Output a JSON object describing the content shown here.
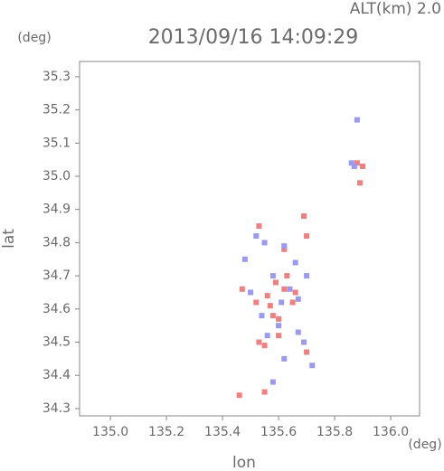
{
  "chart_data": {
    "type": "scatter",
    "title": "2013/09/16 14:09:29",
    "subtitle": "ALT(km) 2.0",
    "x_label": "lon",
    "y_label": "lat",
    "x_unit": "(deg)",
    "y_unit": "(deg)",
    "xlim": [
      134.89,
      136.103
    ],
    "ylim": [
      34.278,
      35.346
    ],
    "xticks": [
      {
        "value": 135.0,
        "label": "135.0"
      },
      135.2,
      135.4,
      135.6,
      135.8,
      {
        "value": 136.0,
        "label": "136.0"
      }
    ],
    "yticks": [
      34.3,
      34.4,
      34.5,
      34.6,
      34.7,
      34.8,
      34.9,
      {
        "value": 35.0,
        "label": "35.0"
      },
      35.1,
      35.2,
      35.3
    ],
    "series": [
      {
        "color": "#f07f7f",
        "x": [
          135.88,
          135.9,
          135.89,
          135.55,
          135.46,
          135.53,
          135.55,
          135.58,
          135.6,
          135.56,
          135.62,
          135.65,
          135.47,
          135.52,
          135.59,
          135.63,
          135.69,
          135.7,
          135.62,
          135.7,
          135.53,
          135.6,
          135.57,
          135.66
        ],
        "values": [
          35.04,
          35.03,
          34.98,
          34.35,
          34.34,
          34.5,
          34.49,
          34.58,
          34.57,
          34.64,
          34.66,
          34.62,
          34.66,
          34.62,
          34.68,
          34.7,
          34.88,
          34.82,
          34.78,
          34.47,
          34.85,
          34.52,
          34.61,
          34.65
        ]
      },
      {
        "color": "#9a9af0",
        "x": [
          135.88,
          135.87,
          135.86,
          135.52,
          135.55,
          135.62,
          135.66,
          135.64,
          135.67,
          135.58,
          135.5,
          135.54,
          135.6,
          135.56,
          135.67,
          135.69,
          135.62,
          135.7,
          135.72,
          135.58,
          135.48,
          135.61
        ],
        "values": [
          35.17,
          35.03,
          35.04,
          34.82,
          34.8,
          34.79,
          34.74,
          34.66,
          34.63,
          34.7,
          34.65,
          34.58,
          34.55,
          34.52,
          34.53,
          34.5,
          34.45,
          34.7,
          34.43,
          34.38,
          34.75,
          34.62
        ]
      }
    ]
  }
}
